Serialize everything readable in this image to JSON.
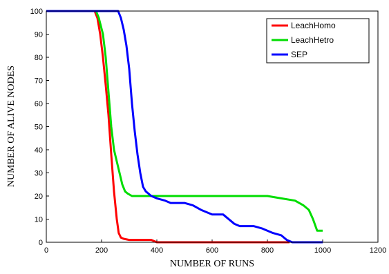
{
  "chart_data": {
    "type": "line",
    "title": "",
    "xlabel": "NUMBER OF RUNS",
    "ylabel": "NUMBER OF ALIVE NODES",
    "xlim": [
      0,
      1200
    ],
    "ylim": [
      0,
      100
    ],
    "xticks": [
      0,
      200,
      400,
      600,
      800,
      1000,
      1200
    ],
    "yticks": [
      0,
      10,
      20,
      30,
      40,
      50,
      60,
      70,
      80,
      90,
      100
    ],
    "grid": false,
    "legend_position": "top-right",
    "series": [
      {
        "name": "LeachHomo",
        "color": "#ff0000",
        "x": [
          0,
          175,
          185,
          195,
          205,
          215,
          225,
          235,
          245,
          255,
          262,
          270,
          280,
          300,
          340,
          380,
          400,
          500,
          700,
          880
        ],
        "y": [
          100,
          100,
          97,
          90,
          80,
          68,
          55,
          38,
          22,
          10,
          4,
          2,
          1.5,
          1,
          1,
          1,
          0,
          0,
          0,
          0
        ]
      },
      {
        "name": "LeachHetro",
        "color": "#00dd00",
        "x": [
          0,
          180,
          190,
          205,
          215,
          225,
          235,
          245,
          255,
          265,
          275,
          285,
          295,
          310,
          400,
          600,
          800,
          850,
          900,
          930,
          950,
          965,
          980,
          1000
        ],
        "y": [
          100,
          100,
          97,
          90,
          80,
          65,
          50,
          40,
          35,
          30,
          25,
          22,
          21,
          20,
          20,
          20,
          20,
          19,
          18,
          16,
          14,
          10,
          5,
          5
        ]
      },
      {
        "name": "SEP",
        "color": "#0000ff",
        "x": [
          0,
          260,
          270,
          280,
          290,
          300,
          310,
          320,
          330,
          340,
          350,
          360,
          370,
          380,
          400,
          430,
          450,
          500,
          530,
          560,
          600,
          640,
          680,
          700,
          750,
          780,
          820,
          850,
          870,
          890,
          900,
          1000
        ],
        "y": [
          100,
          100,
          97,
          92,
          85,
          75,
          60,
          48,
          38,
          30,
          24,
          22,
          21,
          20,
          19,
          18,
          17,
          17,
          16,
          14,
          12,
          12,
          8,
          7,
          7,
          6,
          4,
          3,
          1,
          0,
          0,
          0
        ]
      }
    ]
  }
}
